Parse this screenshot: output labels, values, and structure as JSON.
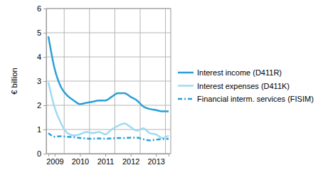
{
  "chart_data": {
    "type": "line",
    "y_label": "€ billion",
    "categories": [
      null,
      "2009",
      null,
      null,
      null,
      "2010",
      null,
      null,
      null,
      "2011",
      null,
      null,
      null,
      "2012",
      null,
      null,
      null,
      "2013",
      null,
      null
    ],
    "series": [
      {
        "name": "Interest income (D411R)",
        "color": "#2a9fd8",
        "line_style": "solid",
        "values": [
          4.85,
          3.5,
          2.75,
          2.4,
          2.2,
          2.05,
          2.1,
          2.15,
          2.2,
          2.2,
          2.35,
          2.5,
          2.5,
          2.35,
          2.2,
          1.95,
          1.85,
          1.8,
          1.75,
          1.75
        ]
      },
      {
        "name": "Interest expenses (D411K)",
        "color": "#9fdaf3",
        "line_style": "solid",
        "values": [
          2.95,
          1.9,
          1.25,
          0.85,
          0.75,
          0.8,
          0.9,
          0.85,
          0.9,
          0.8,
          1.0,
          1.15,
          1.25,
          1.1,
          0.95,
          1.05,
          0.85,
          0.8,
          0.65,
          0.75
        ]
      },
      {
        "name": "Financial interm. services (FISIM)",
        "color": "#2a9fd8",
        "line_style": "dashdot",
        "values": [
          0.85,
          0.7,
          0.72,
          0.7,
          0.68,
          0.65,
          0.63,
          0.62,
          0.63,
          0.62,
          0.63,
          0.65,
          0.65,
          0.66,
          0.66,
          0.6,
          0.55,
          0.58,
          0.6,
          0.62
        ]
      }
    ],
    "ylim": [
      0,
      6
    ],
    "yticks": [
      0,
      1,
      2,
      3,
      4,
      5,
      6
    ],
    "grid": true,
    "legend": "right"
  }
}
